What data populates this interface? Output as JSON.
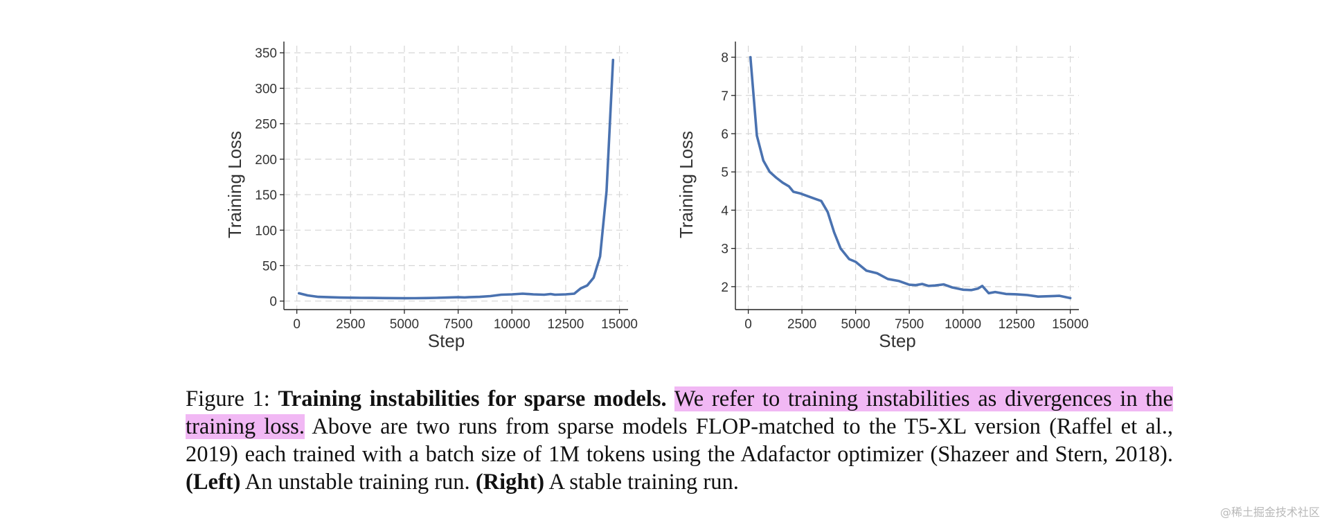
{
  "chart_data": [
    {
      "type": "line",
      "title": "",
      "xlabel": "Step",
      "ylabel": "Training Loss",
      "xlim": [
        -600,
        15400
      ],
      "ylim": [
        -12,
        360
      ],
      "xticks": [
        0,
        2500,
        5000,
        7500,
        10000,
        12500,
        15000
      ],
      "xtick_labels": [
        "0",
        "2500",
        "5000",
        "7500",
        "10000",
        "12500",
        "15000"
      ],
      "yticks": [
        0,
        50,
        100,
        150,
        200,
        250,
        300,
        350
      ],
      "ytick_labels": [
        "0",
        "50",
        "100",
        "150",
        "200",
        "250",
        "300",
        "350"
      ],
      "grid": true,
      "color": "#4a72b0",
      "series": [
        {
          "x": [
            100,
            500,
            1000,
            1500,
            2000,
            2500,
            3000,
            3500,
            4000,
            4500,
            5000,
            5500,
            6000,
            6500,
            7000,
            7500,
            7800,
            8000,
            8500,
            9000,
            9500,
            10000,
            10500,
            11000,
            11500,
            11800,
            12000,
            12500,
            12900,
            13200,
            13500,
            13800,
            14100,
            14400,
            14700
          ],
          "y": [
            11,
            8,
            6,
            5.5,
            5,
            4.8,
            4.6,
            4.5,
            4.3,
            4.2,
            4,
            4.1,
            4.3,
            4.6,
            5,
            5.5,
            5.2,
            5.5,
            6,
            7,
            9,
            9.5,
            10.5,
            9.5,
            9,
            10,
            9,
            9.5,
            10.5,
            18,
            22,
            33,
            63,
            155,
            340
          ]
        }
      ]
    },
    {
      "type": "line",
      "title": "",
      "xlabel": "Step",
      "ylabel": "Training Loss",
      "xlim": [
        -600,
        15400
      ],
      "ylim": [
        1.4,
        8.3
      ],
      "xticks": [
        0,
        2500,
        5000,
        7500,
        10000,
        12500,
        15000
      ],
      "xtick_labels": [
        "0",
        "2500",
        "5000",
        "7500",
        "10000",
        "12500",
        "15000"
      ],
      "yticks": [
        2,
        3,
        4,
        5,
        6,
        7,
        8
      ],
      "ytick_labels": [
        "2",
        "3",
        "4",
        "5",
        "6",
        "7",
        "8"
      ],
      "grid": true,
      "color": "#4a72b0",
      "series": [
        {
          "x": [
            100,
            400,
            700,
            1000,
            1300,
            1600,
            1900,
            2100,
            2400,
            2800,
            3100,
            3400,
            3700,
            4000,
            4300,
            4700,
            5000,
            5500,
            6000,
            6500,
            7000,
            7500,
            7800,
            8100,
            8400,
            8700,
            9100,
            9500,
            10000,
            10400,
            10700,
            10900,
            11200,
            11500,
            12000,
            12500,
            13000,
            13500,
            14000,
            14500,
            15000
          ],
          "y": [
            8,
            5.95,
            5.3,
            5,
            4.85,
            4.72,
            4.62,
            4.48,
            4.44,
            4.36,
            4.3,
            4.24,
            3.95,
            3.42,
            3,
            2.72,
            2.65,
            2.42,
            2.35,
            2.2,
            2.15,
            2.05,
            2.04,
            2.07,
            2.02,
            2.03,
            2.06,
            1.98,
            1.92,
            1.91,
            1.95,
            2.02,
            1.83,
            1.86,
            1.81,
            1.8,
            1.78,
            1.74,
            1.75,
            1.76,
            1.7
          ]
        }
      ]
    }
  ],
  "caption": {
    "figure_label": "Figure 1:",
    "bold_title": "Training instabilities for sparse models.",
    "highlight_text": "We refer to training instabilities as divergences in the training loss.",
    "body_text": "Above are two runs from sparse models FLOP-matched to the T5-XL version (Raffel et al., 2019) each trained with a batch size of 1M tokens using the Adafactor optimizer (Shazeer and Stern, 2018).",
    "left_label": "(Left)",
    "left_text": "An unstable training run.",
    "right_label": "(Right)",
    "right_text": "A stable training run."
  },
  "watermark": "@稀土掘金技术社区"
}
